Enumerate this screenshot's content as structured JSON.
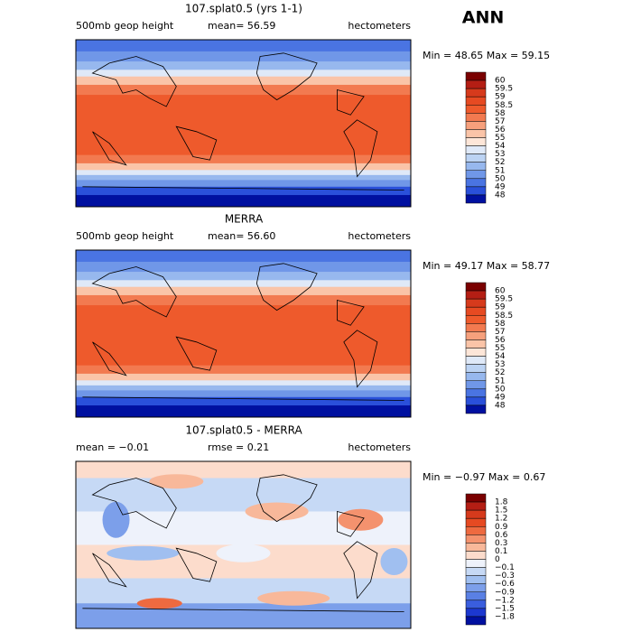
{
  "season": "ANN",
  "panels": [
    {
      "title": "107.splat0.5 (yrs 1-1)",
      "left": "500mb geop height",
      "center": "mean=  56.59",
      "units": "hectometers",
      "minmax": "Min =  48.65 Max =  59.15",
      "levels": [
        "60",
        "59.5",
        "59",
        "58.5",
        "58",
        "57",
        "56",
        "55",
        "54",
        "53",
        "52",
        "51",
        "50",
        "49",
        "48"
      ],
      "colors": [
        "#7a0000",
        "#b41e14",
        "#d63a1c",
        "#e64a22",
        "#ee5a2c",
        "#f27a50",
        "#f6a07c",
        "#fac4a8",
        "#fde6d8",
        "#dfe9f8",
        "#bcd3f3",
        "#97b8ee",
        "#7097e8",
        "#4a74e2",
        "#2a50da",
        "#0010a0"
      ]
    },
    {
      "title": "MERRA",
      "left": "500mb geop height",
      "center": "mean=  56.60",
      "units": "hectometers",
      "minmax": "Min =  49.17 Max =  58.77",
      "levels": [
        "60",
        "59.5",
        "59",
        "58.5",
        "58",
        "57",
        "56",
        "55",
        "54",
        "53",
        "52",
        "51",
        "50",
        "49",
        "48"
      ],
      "colors": [
        "#7a0000",
        "#b41e14",
        "#d63a1c",
        "#e64a22",
        "#ee5a2c",
        "#f27a50",
        "#f6a07c",
        "#fac4a8",
        "#fde6d8",
        "#dfe9f8",
        "#bcd3f3",
        "#97b8ee",
        "#7097e8",
        "#4a74e2",
        "#2a50da",
        "#0010a0"
      ]
    },
    {
      "title": "107.splat0.5 - MERRA",
      "left": "mean =  −0.01",
      "center": "rmse =   0.21",
      "units": "hectometers",
      "minmax": "Min = −0.97 Max =   0.67",
      "levels": [
        "1.8",
        "1.5",
        "1.2",
        "0.9",
        "0.6",
        "0.3",
        "0.1",
        "0",
        "−0.1",
        "−0.3",
        "−0.6",
        "−0.9",
        "−1.2",
        "−1.5",
        "−1.8"
      ],
      "colors": [
        "#7a0000",
        "#b41e14",
        "#d63a1c",
        "#e64a22",
        "#ee6a40",
        "#f4926e",
        "#f8b89a",
        "#fcdccc",
        "#eef2fb",
        "#c6d9f5",
        "#a0bff0",
        "#7c9fea",
        "#5a80e4",
        "#3a5ede",
        "#1c38d0",
        "#0010a0"
      ]
    }
  ]
}
